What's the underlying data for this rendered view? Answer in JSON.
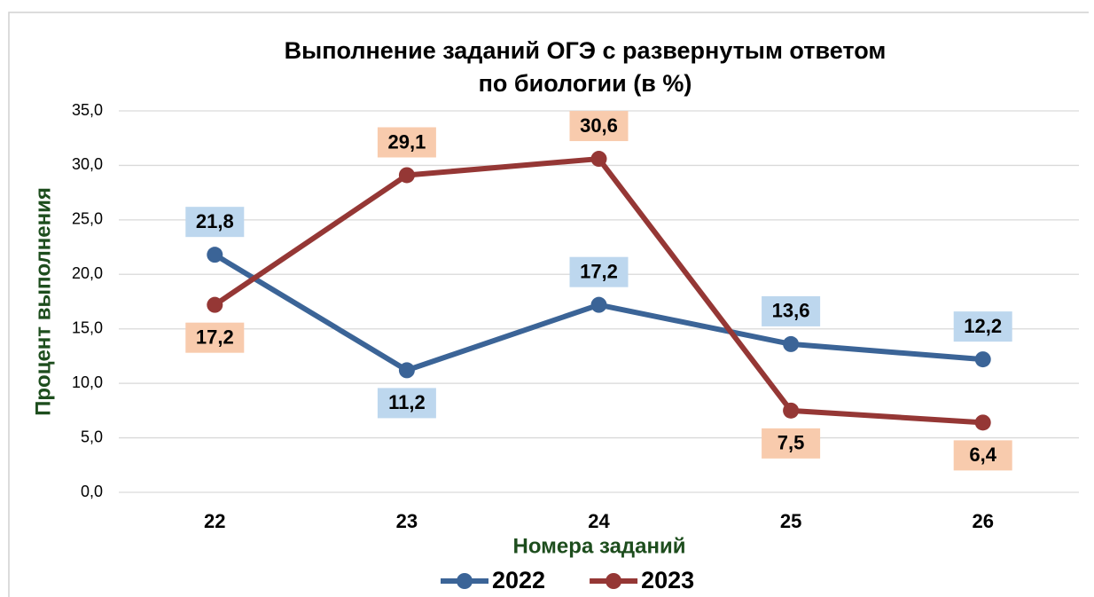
{
  "chart_data": {
    "type": "line",
    "title": [
      "Выполнение заданий ОГЭ с развернутым ответом",
      "по биологии (в %)"
    ],
    "x_label": "Номера заданий",
    "y_label": "Процент выполнения",
    "categories": [
      "22",
      "23",
      "24",
      "25",
      "26"
    ],
    "series": [
      {
        "name": "2022",
        "color": "#3b6497",
        "label_color": "#bdd7ee",
        "values": [
          21.8,
          11.2,
          17.2,
          13.6,
          12.2
        ],
        "value_labels": [
          "21,8",
          "11,2",
          "17,2",
          "13,6",
          "12,2"
        ]
      },
      {
        "name": "2023",
        "color": "#953735",
        "label_color": "#f8cbad",
        "values": [
          17.2,
          29.1,
          30.6,
          7.5,
          6.4
        ],
        "value_labels": [
          "17,2",
          "29,1",
          "30,6",
          "7,5",
          "6,4"
        ]
      }
    ],
    "ylim": [
      0,
      35
    ],
    "yticks": [
      {
        "value": 0,
        "label": "0,0"
      },
      {
        "value": 5,
        "label": "5,0"
      },
      {
        "value": 10,
        "label": "10,0"
      },
      {
        "value": 15,
        "label": "15,0"
      },
      {
        "value": 20,
        "label": "20,0"
      },
      {
        "value": 25,
        "label": "25,0"
      },
      {
        "value": 30,
        "label": "30,0"
      },
      {
        "value": 35,
        "label": "35,0"
      }
    ],
    "grid": true,
    "legend": "bottom"
  }
}
